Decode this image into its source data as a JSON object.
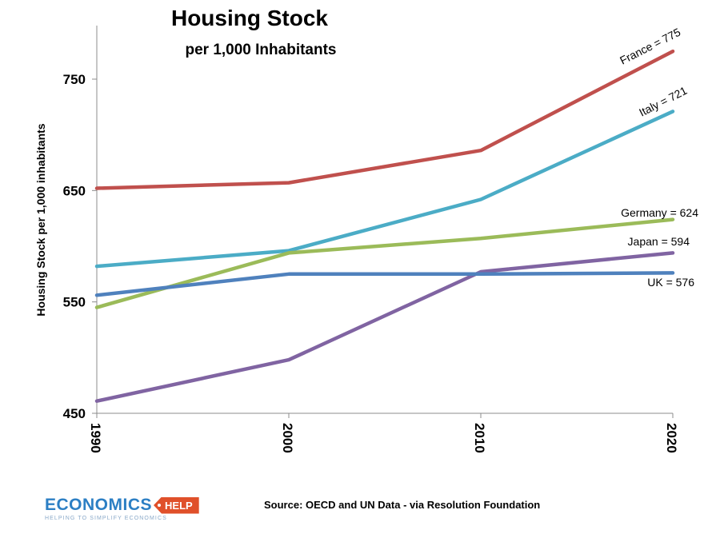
{
  "chart_data": {
    "type": "line",
    "title": "Housing Stock",
    "subtitle": "per 1,000 Inhabitants",
    "xlabel": "",
    "ylabel": "Housing Stock per 1,000 inhabitants",
    "x": [
      1990,
      2000,
      2010,
      2020
    ],
    "x_tick_labels": [
      "1990",
      "2000",
      "2010",
      "2020"
    ],
    "y_ticks": [
      450,
      550,
      650,
      750
    ],
    "y_tick_labels": [
      "450",
      "550",
      "650",
      "750"
    ],
    "ylim": [
      450,
      800
    ],
    "grid": false,
    "series": [
      {
        "name": "France",
        "color": "#c0504d",
        "values": [
          652,
          657,
          686,
          775
        ],
        "label": "France = 775"
      },
      {
        "name": "Italy",
        "color": "#4bacc6",
        "values": [
          582,
          596,
          642,
          721
        ],
        "label": "Italy = 721"
      },
      {
        "name": "Germany",
        "color": "#9bbb59",
        "values": [
          545,
          594,
          607,
          624
        ],
        "label": "Germany = 624"
      },
      {
        "name": "Japan",
        "color": "#8064a2",
        "values": [
          461,
          498,
          577,
          594
        ],
        "label": "Japan = 594"
      },
      {
        "name": "UK",
        "color": "#4f81bd",
        "values": [
          556,
          575,
          575,
          576
        ],
        "label": "UK = 576"
      }
    ]
  },
  "source": "Source: OECD and UN Data - via Resolution Foundation",
  "logo": {
    "word": "ECONOMICS",
    "tag": "HELP",
    "tagline": "HELPING TO SIMPLIFY ECONOMICS"
  }
}
